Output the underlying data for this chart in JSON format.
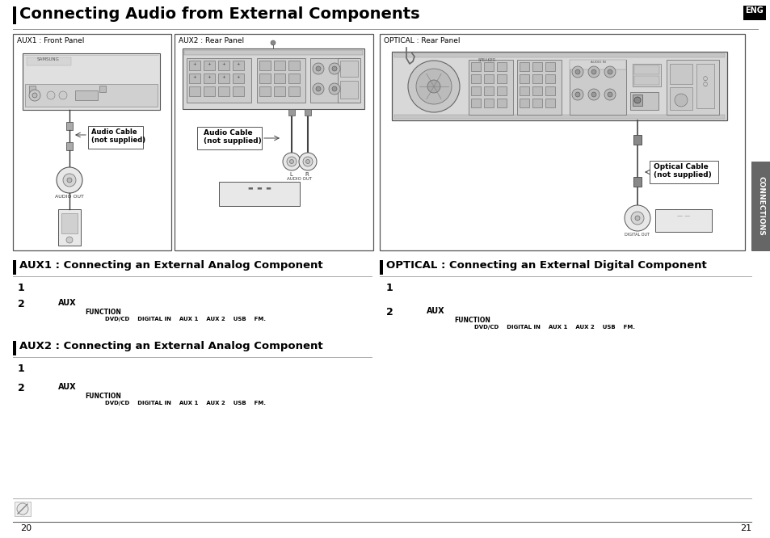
{
  "title": "Connecting Audio from External Components",
  "eng_label": "ENG",
  "page_left": "20",
  "page_right": "21",
  "bg_color": "#ffffff",
  "title_bar_color": "#1a1a1a",
  "section_bar_color": "#1a1a1a",
  "section1_title": "AUX1 : Connecting an External Analog Component",
  "section2_title": "AUX2 : Connecting an External Analog Component",
  "section3_title": "OPTICAL : Connecting an External Digital Component",
  "diagram1_label": "AUX1 : Front Panel",
  "diagram2_label": "AUX2 : Rear Panel",
  "diagram3_label": "OPTICAL : Rear Panel",
  "audio_cable_label1": "Audio Cable\n(not supplied)",
  "audio_cable_label2": "Audio Cable\n(not supplied)",
  "optical_cable_label": "Optical Cable\n(not supplied)",
  "right_tab_text": "CONNECTIONS",
  "function_label": "FUNCTION",
  "function_options": "DVD/CD    DIGITAL IN    AUX 1    AUX 2    USB    FM.",
  "step2_aux": "AUX",
  "audio_out": "AUDIO OUT",
  "digital_out": "DIGITAL OUT",
  "note_icon": "✎"
}
